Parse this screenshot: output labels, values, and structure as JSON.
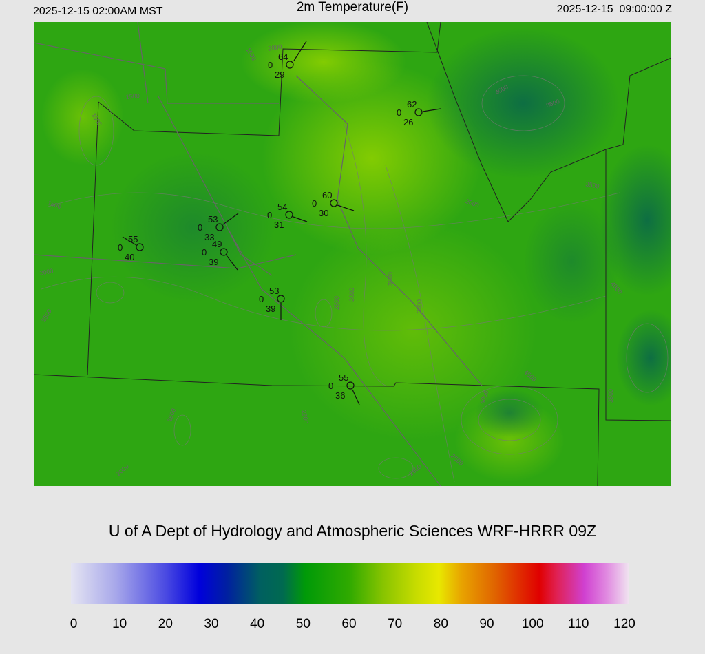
{
  "header": {
    "left": "2025-12-15 02:00AM MST",
    "title": "2m Temperature(F)",
    "right": "2025-12-15_09:00:00 Z"
  },
  "stations": [
    {
      "temperature": 64,
      "wind": 0,
      "dewpoint": 29
    },
    {
      "temperature": 62,
      "wind": 0,
      "dewpoint": 26
    },
    {
      "temperature": 60,
      "wind": 0,
      "dewpoint": 30
    },
    {
      "temperature": 54,
      "wind": 0,
      "dewpoint": 31
    },
    {
      "temperature": 53,
      "wind": 0,
      "dewpoint": 33
    },
    {
      "temperature": 49,
      "wind": 0,
      "dewpoint": 39
    },
    {
      "temperature": 55,
      "wind": 0,
      "dewpoint": 40
    },
    {
      "temperature": 53,
      "wind": 0,
      "dewpoint": 39
    },
    {
      "temperature": 55,
      "wind": 0,
      "dewpoint": 36
    }
  ],
  "contour_labels": [
    1500,
    2000,
    1500,
    1500,
    1500,
    2000,
    2500,
    2000,
    3500,
    3500,
    4000,
    3000,
    3500,
    3000,
    2500,
    2500,
    2500,
    2000,
    2500,
    2500,
    4000,
    3500,
    4000,
    4500
  ],
  "credit": "U of A Dept of Hydrology and Atmospheric Sciences WRF-HRRR 09Z",
  "colorbar": {
    "ticks": [
      0,
      10,
      20,
      30,
      40,
      50,
      60,
      70,
      80,
      90,
      100,
      110,
      120
    ]
  }
}
